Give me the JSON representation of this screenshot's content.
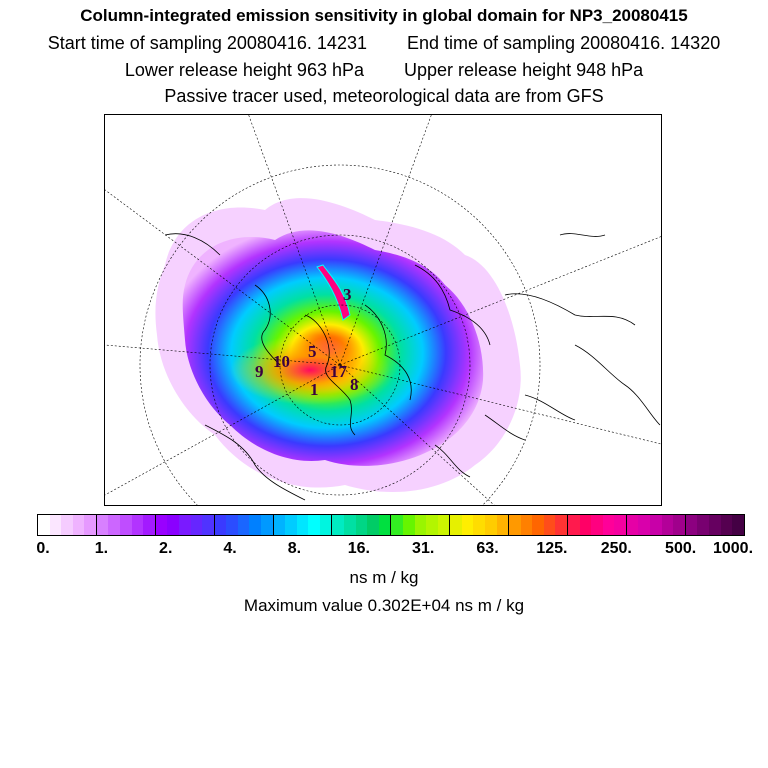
{
  "titles": {
    "line1": "Column-integrated emission sensitivity in global domain for NP3_20080415",
    "start": "Start time of sampling 20080416. 14231",
    "end": "End time of sampling 20080416. 14320",
    "lower": "Lower release height  963 hPa",
    "upper": "Upper release height  948 hPa",
    "line4": "Passive tracer used, meteorological data are from GFS"
  },
  "colorbar": {
    "tick_labels": [
      "0.",
      "1.",
      "2.",
      "4.",
      "8.",
      "16.",
      "31.",
      "63.",
      "125.",
      "250.",
      "500.",
      "1000."
    ],
    "unit": "ns m / kg",
    "colors": [
      "#ffffff",
      "#fbe6ff",
      "#f5ccff",
      "#efb3ff",
      "#e699ff",
      "#d880ff",
      "#cc66ff",
      "#bf4dff",
      "#b233ff",
      "#a31aff",
      "#9900ff",
      "#8a00ff",
      "#7a1aff",
      "#6626ff",
      "#5033ff",
      "#3a3aff",
      "#2b4dff",
      "#1a66ff",
      "#0080ff",
      "#0099ff",
      "#00b3ff",
      "#00ccff",
      "#00e6ff",
      "#00ffff",
      "#00f5e0",
      "#00ebc2",
      "#00e0a3",
      "#00d685",
      "#00cc66",
      "#00e040",
      "#33ee22",
      "#66f500",
      "#99f500",
      "#b3f500",
      "#ccf500",
      "#e6f000",
      "#ffee00",
      "#ffdd00",
      "#ffcc00",
      "#ffb300",
      "#ff9900",
      "#ff8000",
      "#ff6600",
      "#ff4d1a",
      "#ff3333",
      "#ff1a4d",
      "#ff0066",
      "#ff0080",
      "#ff0099",
      "#f500a0",
      "#e600a6",
      "#d900ab",
      "#c800a8",
      "#b30099",
      "#a0008c",
      "#8c0080",
      "#780070",
      "#660060",
      "#550050",
      "#440044"
    ]
  },
  "max_value": "Maximum value  0.302E+04 ns m / kg",
  "map": {
    "projection": "north-polar-stereographic",
    "plume_labels": [
      "9",
      "10",
      "5",
      "17",
      "8",
      "1",
      "3"
    ]
  }
}
